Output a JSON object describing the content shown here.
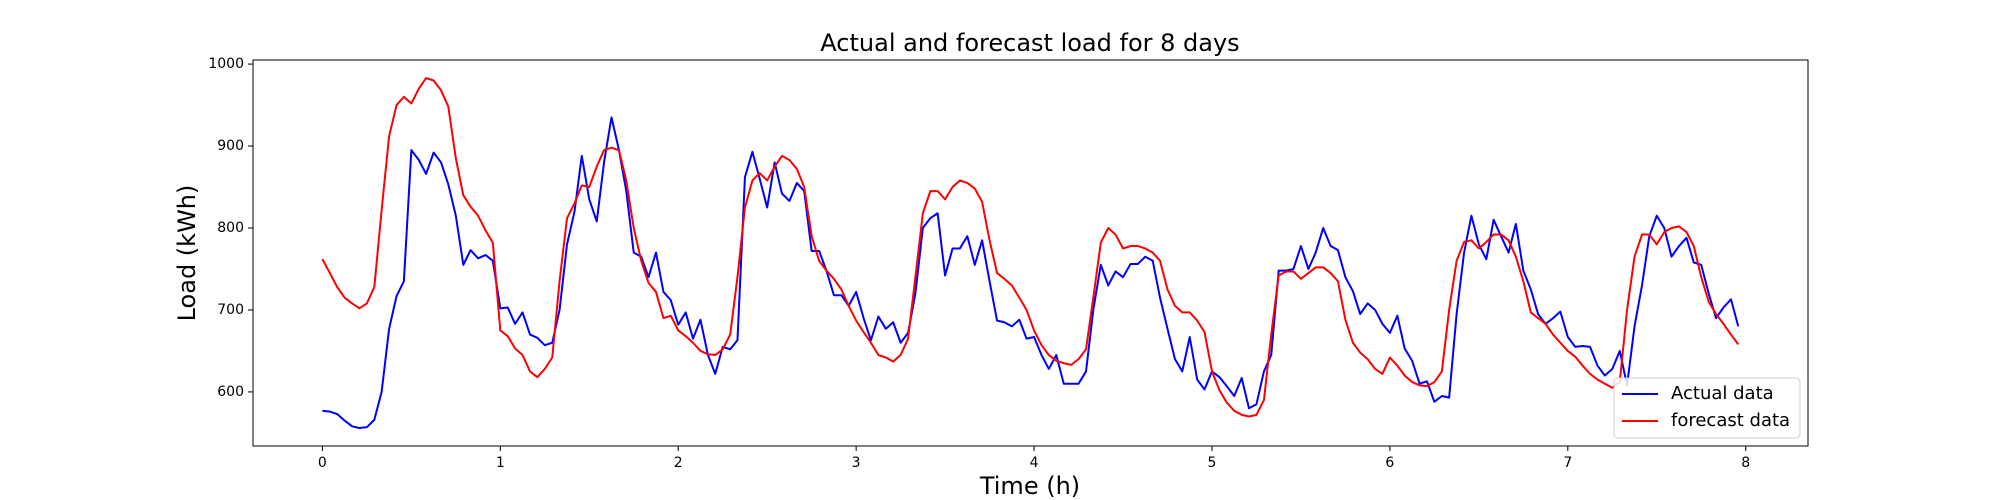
{
  "chart_data": {
    "type": "line",
    "title": "Actual and forecast load for 8 days",
    "x_label": "Time (h)",
    "y_label": "Load (kWh)",
    "x": [
      0,
      0.042,
      0.083,
      0.125,
      0.167,
      0.208,
      0.25,
      0.292,
      0.333,
      0.375,
      0.417,
      0.458,
      0.5,
      0.542,
      0.583,
      0.625,
      0.667,
      0.708,
      0.75,
      0.792,
      0.833,
      0.875,
      0.917,
      0.958,
      1,
      1.042,
      1.083,
      1.125,
      1.167,
      1.208,
      1.25,
      1.292,
      1.333,
      1.375,
      1.417,
      1.458,
      1.5,
      1.542,
      1.583,
      1.625,
      1.667,
      1.708,
      1.75,
      1.792,
      1.833,
      1.875,
      1.917,
      1.958,
      2,
      2.042,
      2.083,
      2.125,
      2.167,
      2.208,
      2.25,
      2.292,
      2.333,
      2.375,
      2.417,
      2.458,
      2.5,
      2.542,
      2.583,
      2.625,
      2.667,
      2.708,
      2.75,
      2.792,
      2.833,
      2.875,
      2.917,
      2.958,
      3,
      3.042,
      3.083,
      3.125,
      3.167,
      3.208,
      3.25,
      3.292,
      3.333,
      3.375,
      3.417,
      3.458,
      3.5,
      3.542,
      3.583,
      3.625,
      3.667,
      3.708,
      3.75,
      3.792,
      3.833,
      3.875,
      3.917,
      3.958,
      4,
      4.042,
      4.083,
      4.125,
      4.167,
      4.208,
      4.25,
      4.292,
      4.333,
      4.375,
      4.417,
      4.458,
      4.5,
      4.542,
      4.583,
      4.625,
      4.667,
      4.708,
      4.75,
      4.792,
      4.833,
      4.875,
      4.917,
      4.958,
      5,
      5.042,
      5.083,
      5.125,
      5.167,
      5.208,
      5.25,
      5.292,
      5.333,
      5.375,
      5.417,
      5.458,
      5.5,
      5.542,
      5.583,
      5.625,
      5.667,
      5.708,
      5.75,
      5.792,
      5.833,
      5.875,
      5.917,
      5.958,
      6,
      6.042,
      6.083,
      6.125,
      6.167,
      6.208,
      6.25,
      6.292,
      6.333,
      6.375,
      6.417,
      6.458,
      6.5,
      6.542,
      6.583,
      6.625,
      6.667,
      6.708,
      6.75,
      6.792,
      6.833,
      6.875,
      6.917,
      6.958,
      7,
      7.042,
      7.083,
      7.125,
      7.167,
      7.208,
      7.25,
      7.292,
      7.333,
      7.375,
      7.417,
      7.458,
      7.5,
      7.542,
      7.583,
      7.625,
      7.667,
      7.708,
      7.75,
      7.792,
      7.833,
      7.875,
      7.917,
      7.958
    ],
    "series": [
      {
        "name": "Actual data",
        "color": "#0000ff",
        "values": [
          577,
          576,
          573,
          565,
          558,
          556,
          557,
          566,
          600,
          677,
          717,
          735,
          895,
          883,
          866,
          892,
          880,
          853,
          815,
          755,
          773,
          763,
          767,
          760,
          702,
          703,
          683,
          697,
          670,
          666,
          657,
          660,
          700,
          780,
          820,
          888,
          835,
          808,
          880,
          935,
          895,
          845,
          770,
          765,
          740,
          770,
          722,
          712,
          682,
          697,
          665,
          688,
          645,
          622,
          655,
          652,
          663,
          862,
          893,
          860,
          825,
          880,
          842,
          833,
          855,
          845,
          772,
          772,
          748,
          718,
          718,
          705,
          722,
          690,
          663,
          692,
          677,
          685,
          660,
          672,
          720,
          800,
          812,
          818,
          742,
          775,
          775,
          790,
          755,
          785,
          735,
          687,
          685,
          680,
          688,
          665,
          667,
          645,
          628,
          645,
          610,
          610,
          610,
          625,
          700,
          755,
          730,
          747,
          740,
          756,
          756,
          765,
          760,
          715,
          677,
          640,
          625,
          667,
          615,
          603,
          625,
          618,
          607,
          595,
          617,
          580,
          585,
          625,
          645,
          748,
          748,
          750,
          778,
          750,
          770,
          800,
          778,
          773,
          740,
          723,
          695,
          708,
          700,
          683,
          672,
          693,
          653,
          638,
          610,
          613,
          588,
          595,
          593,
          695,
          770,
          815,
          780,
          762,
          810,
          790,
          770,
          805,
          748,
          725,
          695,
          683,
          690,
          698,
          667,
          655,
          656,
          655,
          632,
          620,
          628,
          650,
          608,
          680,
          730,
          790,
          815,
          800,
          765,
          778,
          788,
          758,
          755,
          720,
          690,
          703,
          713,
          680
        ]
      },
      {
        "name": "forecast data",
        "color": "#ff0000",
        "values": [
          762,
          745,
          728,
          715,
          708,
          702,
          708,
          728,
          822,
          912,
          950,
          960,
          952,
          970,
          983,
          980,
          968,
          948,
          885,
          840,
          826,
          815,
          797,
          782,
          675,
          668,
          653,
          645,
          625,
          618,
          628,
          642,
          735,
          812,
          830,
          852,
          850,
          875,
          895,
          898,
          895,
          858,
          800,
          760,
          733,
          722,
          690,
          693,
          675,
          668,
          660,
          650,
          646,
          645,
          652,
          670,
          740,
          825,
          858,
          867,
          858,
          875,
          888,
          883,
          872,
          850,
          790,
          760,
          748,
          738,
          725,
          705,
          687,
          673,
          660,
          645,
          642,
          637,
          645,
          665,
          740,
          818,
          845,
          845,
          835,
          850,
          858,
          855,
          848,
          832,
          785,
          745,
          738,
          730,
          715,
          700,
          675,
          657,
          645,
          638,
          635,
          633,
          640,
          652,
          715,
          782,
          800,
          792,
          775,
          778,
          778,
          775,
          770,
          760,
          725,
          705,
          697,
          697,
          687,
          673,
          625,
          602,
          587,
          577,
          572,
          570,
          572,
          590,
          670,
          742,
          747,
          747,
          738,
          745,
          752,
          752,
          745,
          735,
          688,
          660,
          648,
          640,
          628,
          622,
          642,
          632,
          620,
          612,
          608,
          607,
          612,
          625,
          700,
          760,
          783,
          785,
          775,
          783,
          792,
          792,
          785,
          765,
          735,
          697,
          690,
          683,
          670,
          660,
          650,
          643,
          632,
          622,
          615,
          610,
          605,
          612,
          700,
          765,
          792,
          792,
          780,
          795,
          800,
          802,
          795,
          778,
          740,
          710,
          695,
          683,
          670,
          658
        ]
      }
    ],
    "xlim": [
      -0.39,
      8.35
    ],
    "xticks": [
      0,
      1,
      2,
      3,
      4,
      5,
      6,
      7,
      8
    ],
    "ylim": [
      534,
      1005
    ],
    "yticks": [
      600,
      700,
      800,
      900,
      1000
    ],
    "grid": false,
    "legend": "lower right"
  }
}
